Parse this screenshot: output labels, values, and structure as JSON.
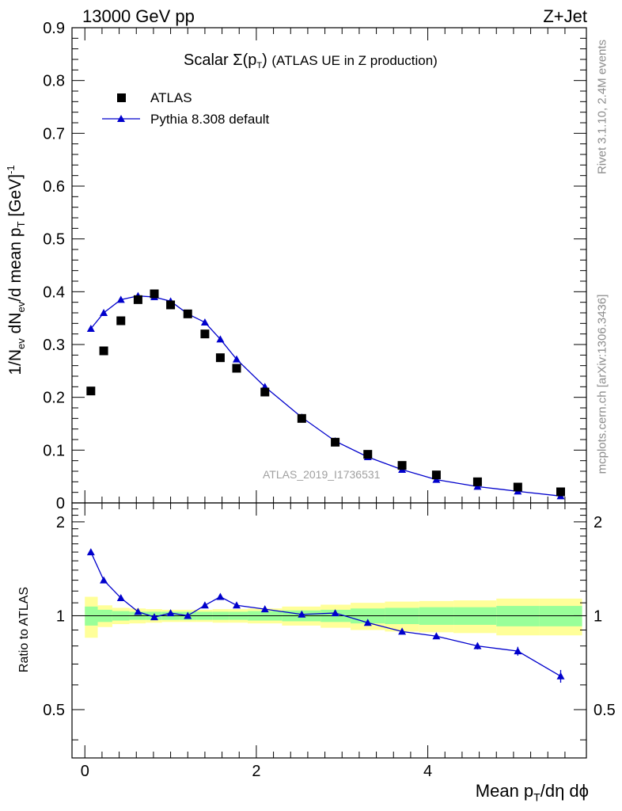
{
  "header": {
    "left": "13000 GeV pp",
    "right": "Z+Jet"
  },
  "title": {
    "main": "Scalar Σ(p",
    "sub": "T",
    "close": ")",
    "rest": "(ATLAS UE in Z production)"
  },
  "watermark": "ATLAS_2019_I1736531",
  "side_text": {
    "rivet": "Rivet 3.1.10,  2.4M events",
    "mcplots": "mcplots.cern.ch [arXiv:1306.3436]"
  },
  "y_label_main": {
    "a": "1/N",
    "b": "ev",
    "c": " dN",
    "d": "ev",
    "e": "/d mean p",
    "f": "T",
    "g": " [GeV]",
    "h": "-1"
  },
  "y_label_ratio": "Ratio to ATLAS",
  "x_label": {
    "a": "Mean p",
    "b": "T",
    "c": "/dη dϕ"
  },
  "legend": {
    "atlas": "ATLAS",
    "pythia": "Pythia 8.308 default"
  },
  "colors": {
    "data": "#000000",
    "mc": "#0000cc",
    "band_inner": "#99ff99",
    "band_outer": "#ffff99"
  },
  "chart_data": [
    {
      "type": "scatter",
      "panel": "main",
      "xlim": [
        -0.15,
        5.85
      ],
      "ylim": [
        0,
        0.9
      ],
      "y_ticks": [
        "0",
        "0.1",
        "0.2",
        "0.3",
        "0.4",
        "0.5",
        "0.6",
        "0.7",
        "0.8",
        "0.9"
      ],
      "x_ticks": [
        "0",
        "2",
        "4"
      ],
      "legend_position": "top-left",
      "series": [
        {
          "name": "ATLAS",
          "marker": "square",
          "x": [
            0.07,
            0.22,
            0.42,
            0.62,
            0.81,
            1.0,
            1.2,
            1.4,
            1.58,
            1.77,
            2.1,
            2.53,
            2.92,
            3.3,
            3.7,
            4.1,
            4.58,
            5.05,
            5.55
          ],
          "y": [
            0.212,
            0.288,
            0.345,
            0.385,
            0.396,
            0.375,
            0.358,
            0.32,
            0.275,
            0.255,
            0.21,
            0.16,
            0.115,
            0.092,
            0.071,
            0.053,
            0.04,
            0.03,
            0.021
          ]
        },
        {
          "name": "Pythia 8.308 default",
          "marker": "triangle",
          "x": [
            0.07,
            0.22,
            0.42,
            0.62,
            0.81,
            1.0,
            1.2,
            1.4,
            1.58,
            1.77,
            2.1,
            2.53,
            2.92,
            3.3,
            3.7,
            4.1,
            4.58,
            5.05,
            5.55
          ],
          "y": [
            0.33,
            0.36,
            0.385,
            0.392,
            0.39,
            0.382,
            0.358,
            0.342,
            0.31,
            0.272,
            0.22,
            0.162,
            0.117,
            0.087,
            0.063,
            0.044,
            0.031,
            0.022,
            0.013
          ]
        }
      ]
    },
    {
      "type": "line",
      "panel": "ratio",
      "xlim": [
        -0.15,
        5.85
      ],
      "ylim": [
        0.35,
        2.3
      ],
      "y_ticks": [
        "0.5",
        "1",
        "2"
      ],
      "x_ticks": [
        "0",
        "2",
        "4"
      ],
      "reference_line": 1,
      "bands": {
        "edges": [
          0,
          0.15,
          0.32,
          0.52,
          0.71,
          0.9,
          1.1,
          1.3,
          1.49,
          1.68,
          1.9,
          2.3,
          2.75,
          3.1,
          3.5,
          3.9,
          4.3,
          4.8,
          5.3,
          5.8
        ],
        "inner": [
          0.07,
          0.045,
          0.035,
          0.03,
          0.03,
          0.03,
          0.03,
          0.03,
          0.03,
          0.03,
          0.035,
          0.04,
          0.045,
          0.055,
          0.06,
          0.065,
          0.065,
          0.075,
          0.075
        ],
        "outer": [
          0.15,
          0.08,
          0.06,
          0.055,
          0.05,
          0.045,
          0.045,
          0.045,
          0.05,
          0.05,
          0.055,
          0.07,
          0.085,
          0.1,
          0.11,
          0.115,
          0.12,
          0.135,
          0.135
        ]
      },
      "series": [
        {
          "name": "Pythia 8.308 default",
          "marker": "triangle",
          "x": [
            0.07,
            0.22,
            0.42,
            0.62,
            0.81,
            1.0,
            1.2,
            1.4,
            1.58,
            1.77,
            2.1,
            2.53,
            2.92,
            3.3,
            3.7,
            4.1,
            4.58,
            5.05,
            5.55
          ],
          "y": [
            1.6,
            1.3,
            1.14,
            1.03,
            0.99,
            1.02,
            1.0,
            1.08,
            1.15,
            1.08,
            1.05,
            1.01,
            1.02,
            0.95,
            0.89,
            0.86,
            0.8,
            0.77,
            0.64
          ],
          "err": [
            0.02,
            0.02,
            0.015,
            0.01,
            0.01,
            0.01,
            0.01,
            0.01,
            0.01,
            0.01,
            0.01,
            0.01,
            0.01,
            0.01,
            0.01,
            0.015,
            0.02,
            0.025,
            0.03
          ]
        }
      ]
    }
  ]
}
